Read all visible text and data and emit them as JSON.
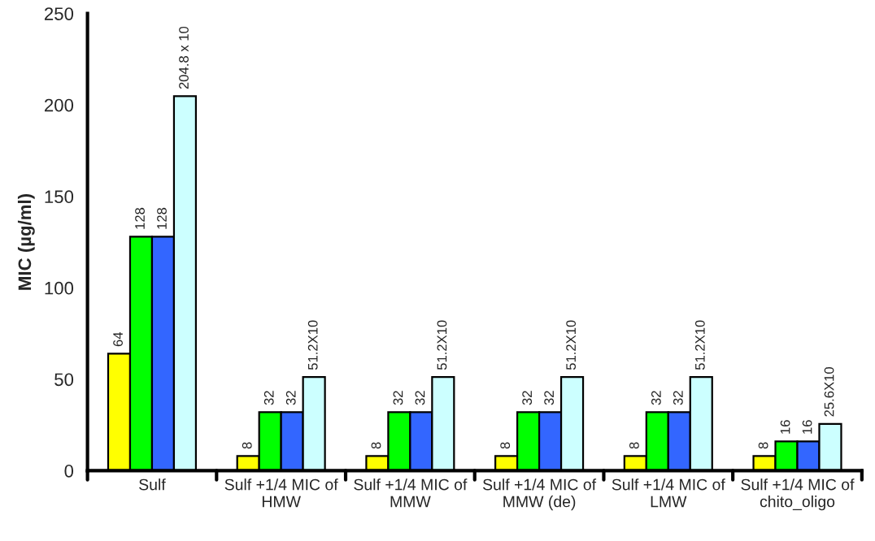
{
  "chart_data": {
    "type": "bar",
    "ylabel": "MIC (µg/ml)",
    "categories": [
      "Sulf",
      "Sulf +1/4 MIC of\nHMW",
      "Sulf +1/4 MIC of\nMMW",
      "Sulf +1/4 MIC of\nMMW (de)",
      "Sulf +1/4 MIC of\nLMW",
      "Sulf +1/4 MIC of\nchito_oligo"
    ],
    "series": [
      {
        "color": "#ffff00",
        "values": [
          64,
          8,
          8,
          8,
          8,
          8
        ],
        "value_labels": [
          "64",
          "8",
          "8",
          "8",
          "8",
          "8"
        ]
      },
      {
        "color": "#00ff00",
        "values": [
          128,
          32,
          32,
          32,
          32,
          16
        ],
        "value_labels": [
          "128",
          "32",
          "32",
          "32",
          "32",
          "16"
        ]
      },
      {
        "color": "#3366ff",
        "values": [
          128,
          32,
          32,
          32,
          32,
          16
        ],
        "value_labels": [
          "128",
          "32",
          "32",
          "32",
          "32",
          "16"
        ]
      },
      {
        "color": "#ccffff",
        "values": [
          204.8,
          51.2,
          51.2,
          51.2,
          51.2,
          25.6
        ],
        "value_labels": [
          "204.8 x 10",
          "51.2X10",
          "51.2X10",
          "51.2X10",
          "51.2X10",
          "25.6X10"
        ]
      }
    ],
    "ylim": [
      0,
      250
    ],
    "yticks": [
      0,
      50,
      100,
      150,
      200,
      250
    ],
    "grid": false,
    "legend": false
  }
}
